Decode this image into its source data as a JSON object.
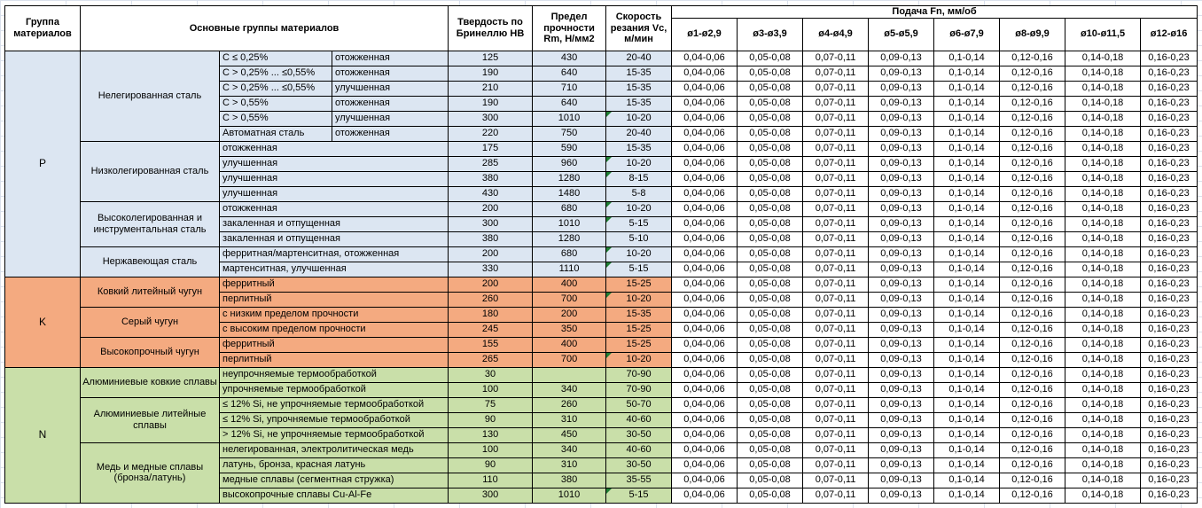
{
  "colors": {
    "p": "#dce6f2",
    "k": "#f4aa80",
    "n": "#c9dfa9",
    "marker": "#1f7e33",
    "border": "#000000",
    "gridline": "#dbe1ec"
  },
  "header": {
    "col_group": "Группа материалов",
    "col_main_groups": "Основные группы материалов",
    "col_hardness": "Твердость по Бринеллю HB",
    "col_strength": "Предел прочности Rm, Н/мм2",
    "col_speed": "Скорость резания Vc, м/мин",
    "feed_title": "Подача Fn, мм/об",
    "feed_columns": [
      "ø1-ø2,9",
      "ø3-ø3,9",
      "ø4-ø4,9",
      "ø5-ø5,9",
      "ø6-ø7,9",
      "ø8-ø9,9",
      "ø10-ø11,5",
      "ø12-ø16"
    ]
  },
  "table": {
    "feed_values_all_rows": [
      "0,04-0,06",
      "0,05-0,08",
      "0,07-0,11",
      "0,09-0,13",
      "0,1-0,14",
      "0,12-0,16",
      "0,14-0,18",
      "0,16-0,23"
    ],
    "sections": [
      {
        "label": "P",
        "color": "p",
        "groups": [
          {
            "name": "Нелегированная сталь",
            "rows": [
              {
                "spec": "С ≤ 0,25%",
                "state": "отожженная",
                "hb": "125",
                "rm": "430",
                "vc": "20-40",
                "err": false
              },
              {
                "spec": "С > 0,25% ... ≤0,55%",
                "state": "отожженная",
                "hb": "190",
                "rm": "640",
                "vc": "15-35",
                "err": false
              },
              {
                "spec": "С > 0,25% ... ≤0,55%",
                "state": "улучшенная",
                "hb": "210",
                "rm": "710",
                "vc": "15-35",
                "err": false
              },
              {
                "spec": "С > 0,55%",
                "state": "отожженная",
                "hb": "190",
                "rm": "640",
                "vc": "15-35",
                "err": false
              },
              {
                "spec": "С > 0,55%",
                "state": "улучшенная",
                "hb": "300",
                "rm": "1010",
                "vc": "10-20",
                "err": true
              },
              {
                "spec": "Автоматная сталь",
                "state": "отожженная",
                "hb": "220",
                "rm": "750",
                "vc": "20-40",
                "err": false
              }
            ]
          },
          {
            "name": "Низколегированная сталь",
            "rows": [
              {
                "spec": "отожженная",
                "state": null,
                "hb": "175",
                "rm": "590",
                "vc": "15-35",
                "err": false
              },
              {
                "spec": "улучшенная",
                "state": null,
                "hb": "285",
                "rm": "960",
                "vc": "10-20",
                "err": true
              },
              {
                "spec": "улучшенная",
                "state": null,
                "hb": "380",
                "rm": "1280",
                "vc": "8-15",
                "err": true
              },
              {
                "spec": "улучшенная",
                "state": null,
                "hb": "430",
                "rm": "1480",
                "vc": "5-8",
                "err": false
              }
            ]
          },
          {
            "name": "Высоколегированная и инструментальная сталь",
            "rows": [
              {
                "spec": "отожженная",
                "state": null,
                "hb": "200",
                "rm": "680",
                "vc": "10-20",
                "err": true
              },
              {
                "spec": "закаленная и отпущенная",
                "state": null,
                "hb": "300",
                "rm": "1010",
                "vc": "5-15",
                "err": true
              },
              {
                "spec": "закаленная и отпущенная",
                "state": null,
                "hb": "380",
                "rm": "1280",
                "vc": "5-10",
                "err": false
              }
            ]
          },
          {
            "name": "Нержавеющая сталь",
            "rows": [
              {
                "spec": "ферритная/мартенситная, отожженная",
                "state": null,
                "hb": "200",
                "rm": "680",
                "vc": "10-20",
                "err": true
              },
              {
                "spec": "мартенситная, улучшенная",
                "state": null,
                "hb": "330",
                "rm": "1110",
                "vc": "5-15",
                "err": true
              }
            ]
          }
        ]
      },
      {
        "label": "K",
        "color": "k",
        "groups": [
          {
            "name": "Ковкий литейный чугун",
            "rows": [
              {
                "spec": "ферритный",
                "state": null,
                "hb": "200",
                "rm": "400",
                "vc": "15-25",
                "err": false
              },
              {
                "spec": "перлитный",
                "state": null,
                "hb": "260",
                "rm": "700",
                "vc": "10-20",
                "err": true
              }
            ]
          },
          {
            "name": "Серый чугун",
            "rows": [
              {
                "spec": "с низким пределом прочности",
                "state": null,
                "hb": "180",
                "rm": "200",
                "vc": "15-35",
                "err": false
              },
              {
                "spec": "с высоким пределом прочности",
                "state": null,
                "hb": "245",
                "rm": "350",
                "vc": "15-25",
                "err": false
              }
            ]
          },
          {
            "name": "Высокопрочный чугун",
            "rows": [
              {
                "spec": "ферритный",
                "state": null,
                "hb": "155",
                "rm": "400",
                "vc": "15-25",
                "err": false
              },
              {
                "spec": "перлитный",
                "state": null,
                "hb": "265",
                "rm": "700",
                "vc": "10-20",
                "err": true
              }
            ]
          }
        ]
      },
      {
        "label": "N",
        "color": "n",
        "groups": [
          {
            "name": "Алюминиевые ковкие сплавы",
            "rows": [
              {
                "spec": "неупрочняемые термообработкой",
                "state": null,
                "hb": "30",
                "rm": "",
                "vc": "70-90",
                "err": false
              },
              {
                "spec": "упрочняемые термообработкой",
                "state": null,
                "hb": "100",
                "rm": "340",
                "vc": "70-90",
                "err": false
              }
            ]
          },
          {
            "name": "Алюминиевые литейные сплавы",
            "rows": [
              {
                "spec": "≤ 12% Si, не упрочняемые термообработкой",
                "state": null,
                "hb": "75",
                "rm": "260",
                "vc": "50-70",
                "err": false
              },
              {
                "spec": "≤ 12% Si, упрочняемые термообработкой",
                "state": null,
                "hb": "90",
                "rm": "310",
                "vc": "40-60",
                "err": false
              },
              {
                "spec": "> 12% Si, не упрочняемые термообработкой",
                "state": null,
                "hb": "130",
                "rm": "450",
                "vc": "30-50",
                "err": false
              }
            ]
          },
          {
            "name": "Медь и медные сплавы (бронза/латунь)",
            "rows": [
              {
                "spec": "нелегированная, электролитическая медь",
                "state": null,
                "hb": "100",
                "rm": "340",
                "vc": "40-60",
                "err": false
              },
              {
                "spec": "латунь, бронза, красная латунь",
                "state": null,
                "hb": "90",
                "rm": "310",
                "vc": "30-50",
                "err": false
              },
              {
                "spec": "медные сплавы (сегментная стружка)",
                "state": null,
                "hb": "110",
                "rm": "380",
                "vc": "35-55",
                "err": false
              },
              {
                "spec": "высокопрочные сплавы Cu-Al-Fe",
                "state": null,
                "hb": "300",
                "rm": "1010",
                "vc": "5-15",
                "err": true
              }
            ]
          }
        ]
      }
    ]
  }
}
